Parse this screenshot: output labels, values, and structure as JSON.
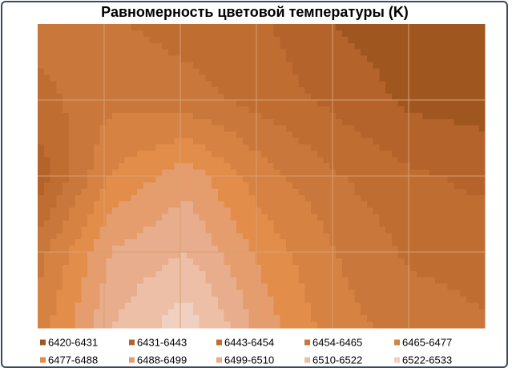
{
  "chart_data": {
    "type": "contour",
    "title": "Равномерность цветовой температуры (K)",
    "levels": [
      6420,
      6431,
      6443,
      6454,
      6465,
      6477,
      6488,
      6499,
      6510,
      6522,
      6533
    ],
    "z": [
      [
        6460,
        6455,
        6450,
        6445,
        6430,
        6425,
        6425
      ],
      [
        6450,
        6462,
        6458,
        6450,
        6440,
        6428,
        6425
      ],
      [
        6435,
        6478,
        6495,
        6470,
        6455,
        6445,
        6440
      ],
      [
        6460,
        6500,
        6510,
        6485,
        6465,
        6452,
        6450
      ],
      [
        6470,
        6510,
        6530,
        6495,
        6470,
        6460,
        6455
      ]
    ],
    "series": [
      {
        "name": "6420-6431",
        "color": "#a0571f"
      },
      {
        "name": "6431-6443",
        "color": "#b4632a"
      },
      {
        "name": "6443-6454",
        "color": "#c06d32"
      },
      {
        "name": "6454-6465",
        "color": "#c9773b"
      },
      {
        "name": "6465-6477",
        "color": "#d58242"
      },
      {
        "name": "6477-6488",
        "color": "#e28d4a"
      },
      {
        "name": "6488-6499",
        "color": "#e59d6e"
      },
      {
        "name": "6499-6510",
        "color": "#e8ad8c"
      },
      {
        "name": "6510-6522",
        "color": "#ecbfa6"
      },
      {
        "name": "6522-6533",
        "color": "#f0d0c0"
      }
    ],
    "grid": true,
    "legend": "bottom"
  }
}
